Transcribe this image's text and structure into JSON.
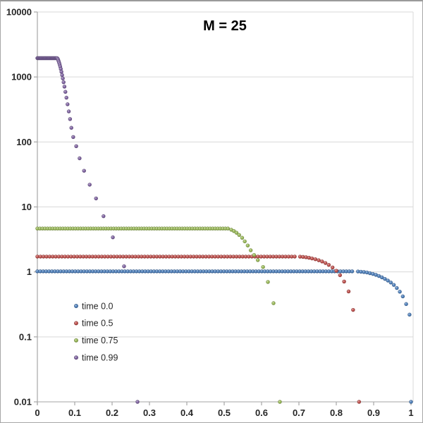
{
  "title": "M = 25",
  "chart_data": {
    "type": "scatter",
    "title": "M = 25",
    "x_axis": {
      "min": 0,
      "max": 1,
      "tick_values": [
        0,
        0.1,
        0.2,
        0.3,
        0.4,
        0.5,
        0.6,
        0.7,
        0.8,
        0.9,
        1
      ],
      "tick_labels": [
        "0",
        "0.1",
        "0.2",
        "0.3",
        "0.4",
        "0.5",
        "0.6",
        "0.7",
        "0.8",
        "0.9",
        "1"
      ]
    },
    "y_axis": {
      "scale": "log",
      "min": 0.01,
      "max": 10000,
      "tick_values": [
        10000,
        1000,
        100,
        10,
        1,
        0.1,
        0.01
      ],
      "tick_labels": [
        "10000",
        "1000",
        "100",
        "10",
        "1",
        "0.1",
        "0.01"
      ]
    },
    "grid": true,
    "legend_position": "inside-bottom-left",
    "series": [
      {
        "name": "time 0.0",
        "color": "#4F81BD",
        "marker": "circle",
        "plateau": {
          "x_start": 0,
          "x_end": 0.85,
          "value": 1.02,
          "step": 0.0078
        },
        "points": [
          [
            0.858,
            1.015
          ],
          [
            0.866,
            1.005
          ],
          [
            0.874,
            0.995
          ],
          [
            0.882,
            0.98
          ],
          [
            0.89,
            0.955
          ],
          [
            0.898,
            0.93
          ],
          [
            0.906,
            0.9
          ],
          [
            0.914,
            0.865
          ],
          [
            0.922,
            0.825
          ],
          [
            0.93,
            0.78
          ],
          [
            0.938,
            0.735
          ],
          [
            0.946,
            0.685
          ],
          [
            0.954,
            0.63
          ],
          [
            0.962,
            0.565
          ],
          [
            0.97,
            0.495
          ],
          [
            0.978,
            0.42
          ],
          [
            0.987,
            0.32
          ],
          [
            0.996,
            0.22
          ],
          [
            1.0,
            0.01
          ]
        ]
      },
      {
        "name": "time 0.5",
        "color": "#C0504D",
        "marker": "circle",
        "plateau": {
          "x_start": 0,
          "x_end": 0.695,
          "value": 1.72,
          "step": 0.0082
        },
        "points": [
          [
            0.703,
            1.715
          ],
          [
            0.711,
            1.7
          ],
          [
            0.719,
            1.68
          ],
          [
            0.727,
            1.65
          ],
          [
            0.735,
            1.61
          ],
          [
            0.744,
            1.565
          ],
          [
            0.753,
            1.51
          ],
          [
            0.762,
            1.445
          ],
          [
            0.771,
            1.37
          ],
          [
            0.78,
            1.28
          ],
          [
            0.79,
            1.17
          ],
          [
            0.8,
            1.04
          ],
          [
            0.81,
            0.89
          ],
          [
            0.821,
            0.71
          ],
          [
            0.833,
            0.5
          ],
          [
            0.845,
            0.26
          ],
          [
            0.861,
            0.01
          ]
        ]
      },
      {
        "name": "time 0.75",
        "color": "#9BBB59",
        "marker": "circle",
        "plateau": {
          "x_start": 0,
          "x_end": 0.512,
          "value": 4.65,
          "step": 0.0068
        },
        "points": [
          [
            0.519,
            4.45
          ],
          [
            0.526,
            4.25
          ],
          [
            0.533,
            4.0
          ],
          [
            0.54,
            3.7
          ],
          [
            0.548,
            3.35
          ],
          [
            0.555,
            2.95
          ],
          [
            0.563,
            2.55
          ],
          [
            0.571,
            2.15
          ],
          [
            0.58,
            1.82
          ],
          [
            0.59,
            1.52
          ],
          [
            0.604,
            1.19
          ],
          [
            0.617,
            0.7
          ],
          [
            0.632,
            0.33
          ],
          [
            0.649,
            0.01
          ]
        ]
      },
      {
        "name": "time 0.99",
        "color": "#8064A2",
        "marker": "circle",
        "plateau": {
          "x_start": 0,
          "x_end": 0.053,
          "value": 1950,
          "step": 0.0016
        },
        "points": [
          [
            0.0545,
            1900
          ],
          [
            0.0557,
            1830
          ],
          [
            0.0569,
            1750
          ],
          [
            0.0582,
            1660
          ],
          [
            0.0596,
            1560
          ],
          [
            0.0611,
            1450
          ],
          [
            0.0627,
            1330
          ],
          [
            0.0644,
            1200
          ],
          [
            0.0662,
            1070
          ],
          [
            0.0681,
            950
          ],
          [
            0.0702,
            830
          ],
          [
            0.0725,
            710
          ],
          [
            0.075,
            590
          ],
          [
            0.0778,
            480
          ],
          [
            0.0808,
            380
          ],
          [
            0.0841,
            295
          ],
          [
            0.0875,
            225
          ],
          [
            0.091,
            165
          ],
          [
            0.096,
            119
          ],
          [
            0.104,
            86
          ],
          [
            0.113,
            56
          ],
          [
            0.125,
            36
          ],
          [
            0.14,
            22
          ],
          [
            0.157,
            13.5
          ],
          [
            0.177,
            7.2
          ],
          [
            0.202,
            3.4
          ],
          [
            0.232,
            1.22
          ],
          [
            0.268,
            0.01
          ]
        ]
      }
    ]
  }
}
